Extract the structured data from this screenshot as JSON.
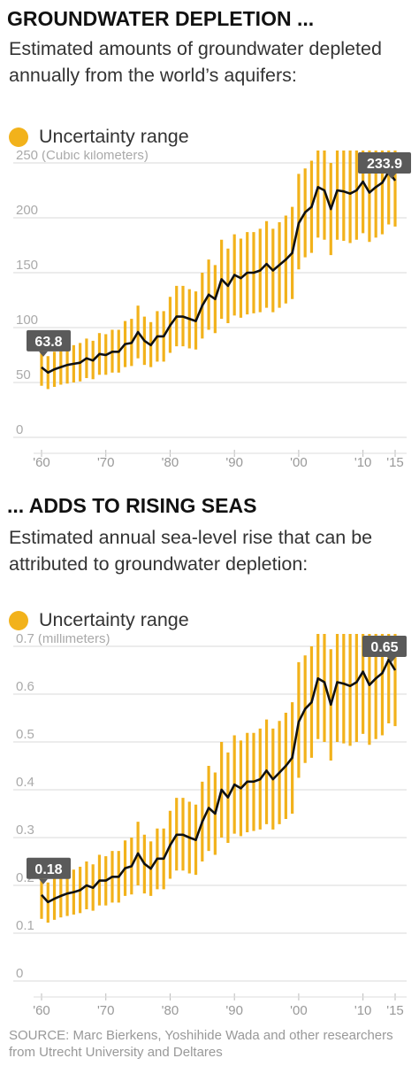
{
  "colors": {
    "range": "#F2B21B",
    "line": "#111111",
    "grid": "#d9d9d9",
    "label_bg": "#5a5a5a"
  },
  "chart_data": [
    {
      "type": "line",
      "title": "GROUNDWATER DEPLETION ...",
      "subtitle": "Estimated amounts of groundwater depleted annually from the world’s aquifers:",
      "legend": "Uncertainty range",
      "unit_label": "(Cubic kilometers)",
      "ylim": [
        0,
        250
      ],
      "y_ticks": [
        "0",
        "50",
        "100",
        "150",
        "200",
        "250"
      ],
      "y_tick_values": [
        0,
        50,
        100,
        150,
        200,
        250
      ],
      "x_ticks": [
        "'60",
        "'70",
        "'80",
        "'90",
        "'00",
        "'10",
        "'15"
      ],
      "x_tick_years": [
        1960,
        1970,
        1980,
        1990,
        2000,
        2010,
        2015
      ],
      "x_range": [
        1959,
        2016
      ],
      "start_label": "63.8",
      "end_label": "233.9",
      "years": [
        1960,
        1961,
        1962,
        1963,
        1964,
        1965,
        1966,
        1967,
        1968,
        1969,
        1970,
        1971,
        1972,
        1973,
        1974,
        1975,
        1976,
        1977,
        1978,
        1979,
        1980,
        1981,
        1982,
        1983,
        1984,
        1985,
        1986,
        1987,
        1988,
        1989,
        1990,
        1991,
        1992,
        1993,
        1994,
        1995,
        1996,
        1997,
        1998,
        1999,
        2000,
        2001,
        2002,
        2003,
        2004,
        2005,
        2006,
        2007,
        2008,
        2009,
        2010,
        2011,
        2012,
        2013,
        2014,
        2015
      ],
      "values": [
        63.8,
        59,
        62,
        64,
        66,
        67,
        68,
        72,
        70,
        76,
        75,
        78,
        78,
        85,
        86,
        96,
        88,
        84,
        92,
        92,
        102,
        110,
        110,
        108,
        106,
        120,
        130,
        126,
        144,
        138,
        148,
        145,
        150,
        150,
        152,
        158,
        152,
        157,
        162,
        168,
        195,
        205,
        210,
        228,
        225,
        208,
        225,
        224,
        222,
        225,
        233,
        223,
        228,
        232,
        242,
        233.9
      ],
      "lows": [
        47,
        44,
        46,
        48,
        49,
        50,
        51,
        54,
        53,
        57,
        57,
        59,
        59,
        64,
        65,
        72,
        66,
        64,
        69,
        69,
        77,
        83,
        83,
        81,
        80,
        90,
        98,
        95,
        108,
        104,
        111,
        109,
        112,
        113,
        114,
        118,
        114,
        118,
        122,
        126,
        153,
        164,
        168,
        182,
        180,
        166,
        180,
        179,
        177,
        180,
        186,
        178,
        182,
        185,
        194,
        192
      ],
      "highs": [
        80,
        74,
        78,
        80,
        83,
        84,
        86,
        90,
        88,
        95,
        94,
        98,
        98,
        106,
        108,
        120,
        110,
        105,
        115,
        115,
        128,
        138,
        138,
        135,
        133,
        150,
        162,
        157,
        180,
        172,
        185,
        181,
        187,
        187,
        190,
        197,
        190,
        196,
        202,
        210,
        240,
        245,
        252,
        265,
        263,
        250,
        265,
        264,
        262,
        265,
        272,
        262,
        268,
        272,
        280,
        278
      ]
    },
    {
      "type": "line",
      "title": "... ADDS TO RISING SEAS",
      "subtitle": "Estimated annual sea-level rise that can be attributed to groundwater depletion:",
      "legend": "Uncertainty range",
      "unit_label": "(millimeters)",
      "ylim": [
        0,
        0.7
      ],
      "y_ticks": [
        "0",
        "0.1",
        "0.2",
        "0.3",
        "0.4",
        "0.5",
        "0.6",
        "0.7"
      ],
      "y_tick_values": [
        0,
        0.1,
        0.2,
        0.3,
        0.4,
        0.5,
        0.6,
        0.7
      ],
      "x_ticks": [
        "'60",
        "'70",
        "'80",
        "'90",
        "'00",
        "'10",
        "'15"
      ],
      "x_tick_years": [
        1960,
        1970,
        1980,
        1990,
        2000,
        2010,
        2015
      ],
      "x_range": [
        1959,
        2016
      ],
      "start_label": "0.18",
      "end_label": "0.65",
      "years": [
        1960,
        1961,
        1962,
        1963,
        1964,
        1965,
        1966,
        1967,
        1968,
        1969,
        1970,
        1971,
        1972,
        1973,
        1974,
        1975,
        1976,
        1977,
        1978,
        1979,
        1980,
        1981,
        1982,
        1983,
        1984,
        1985,
        1986,
        1987,
        1988,
        1989,
        1990,
        1991,
        1992,
        1993,
        1994,
        1995,
        1996,
        1997,
        1998,
        1999,
        2000,
        2001,
        2002,
        2003,
        2004,
        2005,
        2006,
        2007,
        2008,
        2009,
        2010,
        2011,
        2012,
        2013,
        2014,
        2015
      ],
      "values": [
        0.18,
        0.165,
        0.172,
        0.178,
        0.183,
        0.186,
        0.19,
        0.2,
        0.195,
        0.21,
        0.21,
        0.218,
        0.218,
        0.236,
        0.24,
        0.267,
        0.245,
        0.235,
        0.256,
        0.256,
        0.284,
        0.306,
        0.306,
        0.3,
        0.295,
        0.333,
        0.362,
        0.35,
        0.4,
        0.384,
        0.411,
        0.403,
        0.417,
        0.417,
        0.422,
        0.44,
        0.422,
        0.436,
        0.45,
        0.467,
        0.542,
        0.569,
        0.583,
        0.633,
        0.625,
        0.578,
        0.625,
        0.622,
        0.617,
        0.625,
        0.647,
        0.619,
        0.633,
        0.644,
        0.672,
        0.65
      ],
      "lows": [
        0.13,
        0.122,
        0.128,
        0.133,
        0.136,
        0.139,
        0.142,
        0.15,
        0.147,
        0.158,
        0.158,
        0.164,
        0.164,
        0.178,
        0.181,
        0.2,
        0.183,
        0.178,
        0.192,
        0.192,
        0.214,
        0.231,
        0.231,
        0.225,
        0.222,
        0.25,
        0.272,
        0.264,
        0.3,
        0.289,
        0.308,
        0.303,
        0.311,
        0.314,
        0.317,
        0.328,
        0.317,
        0.328,
        0.339,
        0.35,
        0.425,
        0.456,
        0.467,
        0.506,
        0.5,
        0.461,
        0.5,
        0.497,
        0.492,
        0.5,
        0.517,
        0.494,
        0.506,
        0.514,
        0.539,
        0.533
      ],
      "highs": [
        0.222,
        0.206,
        0.217,
        0.222,
        0.231,
        0.233,
        0.239,
        0.25,
        0.244,
        0.264,
        0.261,
        0.272,
        0.272,
        0.294,
        0.3,
        0.333,
        0.306,
        0.292,
        0.319,
        0.319,
        0.356,
        0.383,
        0.383,
        0.375,
        0.369,
        0.417,
        0.45,
        0.436,
        0.5,
        0.478,
        0.514,
        0.503,
        0.519,
        0.519,
        0.528,
        0.547,
        0.528,
        0.544,
        0.561,
        0.583,
        0.667,
        0.681,
        0.7,
        0.736,
        0.731,
        0.694,
        0.736,
        0.733,
        0.728,
        0.736,
        0.756,
        0.728,
        0.744,
        0.756,
        0.778,
        0.772
      ]
    }
  ],
  "source": "SOURCE: Marc Bierkens, Yoshihide Wada and other researchers from Utrecht University and Deltares"
}
